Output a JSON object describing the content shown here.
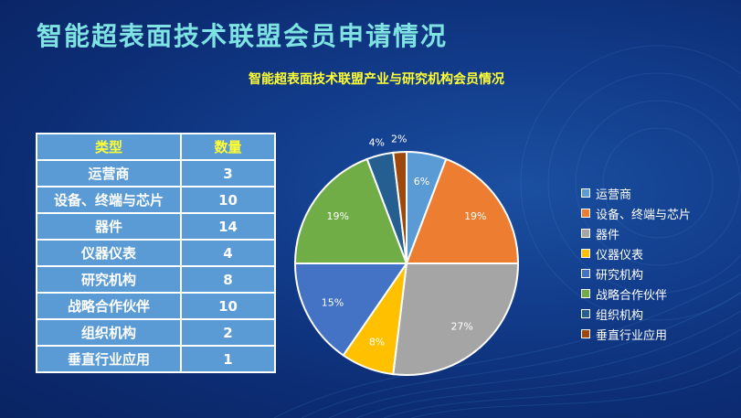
{
  "slide": {
    "title": "智能超表面技术联盟会员申请情况"
  },
  "table": {
    "headers": [
      "类型",
      "数量"
    ],
    "rows": [
      [
        "运营商",
        "3"
      ],
      [
        "设备、终端与芯片",
        "10"
      ],
      [
        "器件",
        "14"
      ],
      [
        "仪器仪表",
        "4"
      ],
      [
        "研究机构",
        "8"
      ],
      [
        "战略合作伙伴",
        "10"
      ],
      [
        "组织机构",
        "2"
      ],
      [
        "垂直行业应用",
        "1"
      ]
    ]
  },
  "chart_data": {
    "type": "pie",
    "title": "智能超表面技术联盟产业与研究机构会员情况",
    "categories": [
      "运营商",
      "设备、终端与芯片",
      "器件",
      "仪器仪表",
      "研究机构",
      "战略合作伙伴",
      "组织机构",
      "垂直行业应用"
    ],
    "values": [
      3,
      10,
      14,
      4,
      8,
      10,
      2,
      1
    ],
    "percent_labels": [
      "6%",
      "19%",
      "27%",
      "8%",
      "15%",
      "19%",
      "4%",
      "2%"
    ],
    "colors": [
      "#5b9bd5",
      "#ed7d31",
      "#a5a5a5",
      "#ffc000",
      "#4472c4",
      "#70ad47",
      "#255e91",
      "#9e480e"
    ],
    "legend_position": "right"
  }
}
